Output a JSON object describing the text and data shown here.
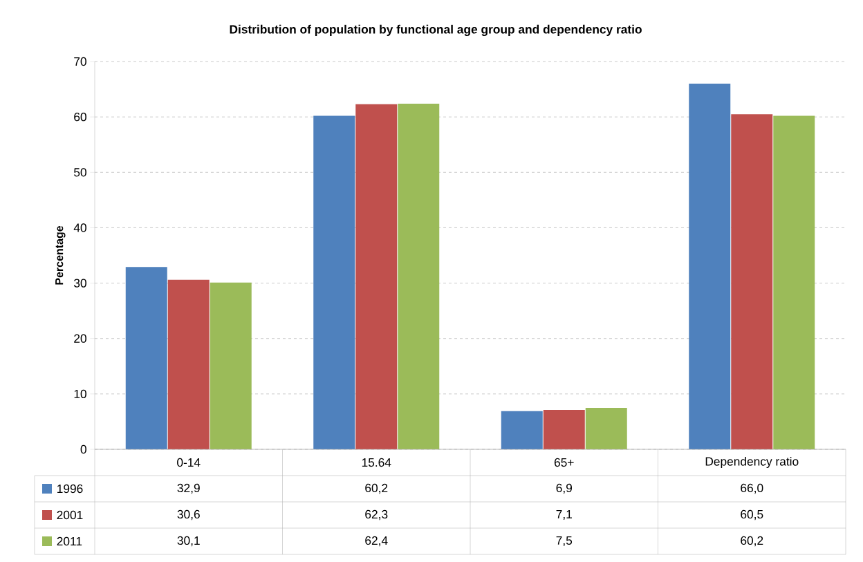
{
  "chart_data": {
    "type": "bar",
    "title": "Distribution of population by functional age group and dependency ratio",
    "ylabel": "Percentage",
    "categories": [
      "0-14",
      "15.64",
      "65+",
      "Dependency ratio"
    ],
    "series": [
      {
        "name": "1996",
        "color": "#4f81bd",
        "values": [
          32.9,
          60.2,
          6.9,
          66.0
        ],
        "value_labels": [
          "32,9",
          "60,2",
          "6,9",
          "66,0"
        ]
      },
      {
        "name": "2001",
        "color": "#c0504d",
        "values": [
          30.6,
          62.3,
          7.1,
          60.5
        ],
        "value_labels": [
          "30,6",
          "62,3",
          "7,1",
          "60,5"
        ]
      },
      {
        "name": "2011",
        "color": "#9bbb59",
        "values": [
          30.1,
          62.4,
          7.5,
          60.2
        ],
        "value_labels": [
          "30,1",
          "62,4",
          "7,5",
          "60,2"
        ]
      }
    ],
    "ylim": [
      0,
      70
    ],
    "yticks": [
      0,
      10,
      20,
      30,
      40,
      50,
      60,
      70
    ],
    "grid": "y",
    "legend": "bottom left"
  }
}
